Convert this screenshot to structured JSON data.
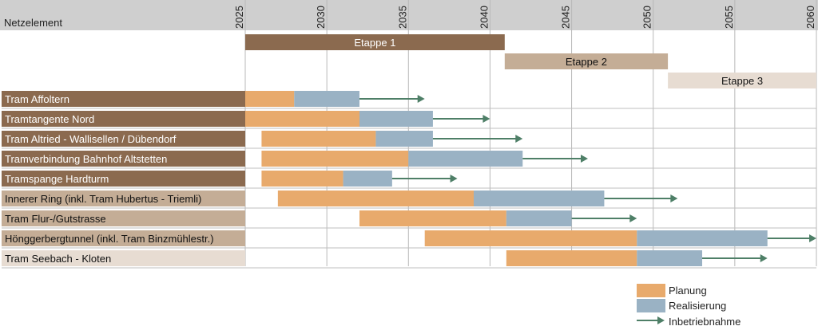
{
  "chart_data": {
    "type": "gantt",
    "xlabel": "Netzelement",
    "xlim": [
      2009,
      2060
    ],
    "x_ticks": [
      2025,
      2030,
      2035,
      2040,
      2045,
      2050,
      2055,
      2060
    ],
    "grid": true,
    "legend_position": "bottom-right",
    "stages": [
      {
        "label": "Etappe 1",
        "start": 2025,
        "end": 2040.9,
        "color": "#8b6a4f"
      },
      {
        "label": "Etappe 2",
        "start": 2040.9,
        "end": 2050.9,
        "color": "#c4ad96"
      },
      {
        "label": "Etappe 3",
        "start": 2050.9,
        "end": 2060,
        "color": "#e7dcd2"
      }
    ],
    "legend": [
      {
        "label": "Planung",
        "kind": "box",
        "color": "#e8aa6c"
      },
      {
        "label": "Realisierung",
        "kind": "box",
        "color": "#9ab2c4"
      },
      {
        "label": "Inbetriebnahme",
        "kind": "arrow",
        "color": "#4e7f67"
      }
    ],
    "rows": [
      {
        "label": "Tram Affoltern",
        "stage": 1,
        "planung": [
          2025,
          2028
        ],
        "realisierung": [
          2028,
          2032
        ],
        "inbetriebnahme": [
          2032,
          2036
        ]
      },
      {
        "label": "Tramtangente Nord",
        "stage": 1,
        "planung": [
          2025,
          2032
        ],
        "realisierung": [
          2032,
          2036.5
        ],
        "inbetriebnahme": [
          2036.5,
          2040
        ]
      },
      {
        "label": "Tram Altried - Wallisellen / Dübendorf",
        "stage": 1,
        "planung": [
          2026,
          2033
        ],
        "realisierung": [
          2033,
          2036.5
        ],
        "inbetriebnahme": [
          2036.5,
          2042
        ]
      },
      {
        "label": "Tramverbindung Bahnhof Altstetten",
        "stage": 1,
        "planung": [
          2026,
          2035
        ],
        "realisierung": [
          2035,
          2042
        ],
        "inbetriebnahme": [
          2042,
          2046
        ]
      },
      {
        "label": "Tramspange Hardturm",
        "stage": 1,
        "planung": [
          2026,
          2031
        ],
        "realisierung": [
          2031,
          2034
        ],
        "inbetriebnahme": [
          2034,
          2038
        ]
      },
      {
        "label": "Innerer Ring (inkl. Tram Hubertus - Triemli)",
        "stage": 2,
        "planung": [
          2027,
          2039
        ],
        "realisierung": [
          2039,
          2047
        ],
        "inbetriebnahme": [
          2047,
          2051.5
        ]
      },
      {
        "label": "Tram Flur-/Gutstrasse",
        "stage": 2,
        "planung": [
          2032,
          2041
        ],
        "realisierung": [
          2041,
          2045
        ],
        "inbetriebnahme": [
          2045,
          2049
        ]
      },
      {
        "label": "Hönggerbergtunnel (inkl. Tram Binzmühlestr.)",
        "stage": 2,
        "planung": [
          2036,
          2049
        ],
        "realisierung": [
          2049,
          2057
        ],
        "inbetriebnahme": [
          2057,
          2060
        ]
      },
      {
        "label": "Tram Seebach - Kloten",
        "stage": 3,
        "planung": [
          2041,
          2049
        ],
        "realisierung": [
          2049,
          2053
        ],
        "inbetriebnahme": [
          2053,
          2057
        ]
      }
    ]
  }
}
